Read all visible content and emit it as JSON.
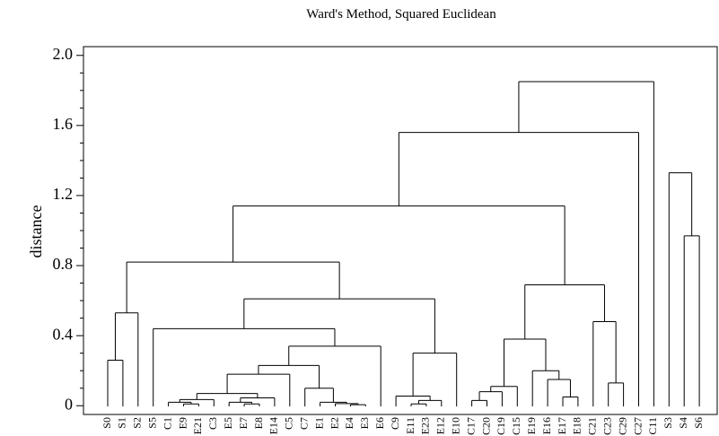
{
  "chart_data": {
    "type": "dendrogram",
    "title": "Ward's Method, Squared Euclidean",
    "ylabel": "distance",
    "ylim": [
      -0.05,
      2.05
    ],
    "yticks": [
      0,
      0.4,
      0.8,
      1.2,
      1.6,
      {
        "value": 2,
        "label": "2.0"
      }
    ],
    "minor_yticks": [
      0.1,
      0.2,
      0.3,
      0.5,
      0.6,
      0.7,
      0.9,
      1.0,
      1.1,
      1.3,
      1.4,
      1.5,
      1.7,
      1.8,
      1.9
    ],
    "color": "#000000",
    "roots": [
      {
        "height": 1.85,
        "children": [
          {
            "height": 1.56,
            "children": [
              {
                "height": 1.14,
                "children": [
                  {
                    "height": 0.82,
                    "children": [
                      {
                        "height": 0.53,
                        "children": [
                          {
                            "height": 0.26,
                            "children": [
                              "S0",
                              "S1"
                            ]
                          },
                          "S2"
                        ]
                      },
                      {
                        "height": 0.61,
                        "children": [
                          {
                            "height": 0.44,
                            "children": [
                              "S5",
                              {
                                "height": 0.34,
                                "children": [
                                  {
                                    "height": 0.23,
                                    "children": [
                                      {
                                        "height": 0.18,
                                        "children": [
                                          {
                                            "height": 0.07,
                                            "children": [
                                              {
                                                "height": 0.035,
                                                "children": [
                                                  {
                                                    "height": 0.02,
                                                    "children": [
                                                      "C1",
                                                      {
                                                        "height": 0.01,
                                                        "children": [
                                                          "E9",
                                                          "E21"
                                                        ]
                                                      }
                                                    ]
                                                  },
                                                  "C3"
                                                ]
                                              },
                                              {
                                                "height": 0.045,
                                                "children": [
                                                  {
                                                    "height": 0.02,
                                                    "children": [
                                                      "E5",
                                                      {
                                                        "height": 0.01,
                                                        "children": [
                                                          "E7",
                                                          "E8"
                                                        ]
                                                      }
                                                    ]
                                                  },
                                                  "E14"
                                                ]
                                              }
                                            ]
                                          },
                                          "C5"
                                        ]
                                      },
                                      {
                                        "height": 0.1,
                                        "children": [
                                          "C7",
                                          {
                                            "height": 0.02,
                                            "children": [
                                              "E1",
                                              {
                                                "height": 0.012,
                                                "children": [
                                                  "E2",
                                                  {
                                                    "height": 0.006,
                                                    "children": [
                                                      "E4",
                                                      "E3"
                                                    ]
                                                  }
                                                ]
                                              }
                                            ]
                                          }
                                        ]
                                      }
                                    ]
                                  },
                                  "E6"
                                ]
                              }
                            ]
                          },
                          {
                            "height": 0.3,
                            "children": [
                              {
                                "height": 0.055,
                                "children": [
                                  "C9",
                                  {
                                    "height": 0.03,
                                    "children": [
                                      {
                                        "height": 0.01,
                                        "children": [
                                          "E11",
                                          "E23"
                                        ]
                                      },
                                      "E12"
                                    ]
                                  }
                                ]
                              },
                              "E10"
                            ]
                          }
                        ]
                      }
                    ]
                  },
                  {
                    "height": 0.69,
                    "children": [
                      {
                        "height": 0.38,
                        "children": [
                          {
                            "height": 0.11,
                            "children": [
                              {
                                "height": 0.08,
                                "children": [
                                  {
                                    "height": 0.03,
                                    "children": [
                                      "C17",
                                      "C20"
                                    ]
                                  },
                                  "C19"
                                ]
                              },
                              "C15"
                            ]
                          },
                          {
                            "height": 0.2,
                            "children": [
                              "E19",
                              {
                                "height": 0.15,
                                "children": [
                                  "E16",
                                  {
                                    "height": 0.05,
                                    "children": [
                                      "E17",
                                      "E18"
                                    ]
                                  }
                                ]
                              }
                            ]
                          }
                        ]
                      },
                      {
                        "height": 0.48,
                        "children": [
                          "C21",
                          {
                            "height": 0.13,
                            "children": [
                              "C23",
                              "C29"
                            ]
                          }
                        ]
                      }
                    ]
                  }
                ]
              },
              "C27"
            ]
          },
          "C11"
        ]
      },
      {
        "height": 1.33,
        "children": [
          "S3",
          {
            "height": 0.97,
            "children": [
              "S4",
              "S6"
            ]
          }
        ]
      }
    ]
  }
}
